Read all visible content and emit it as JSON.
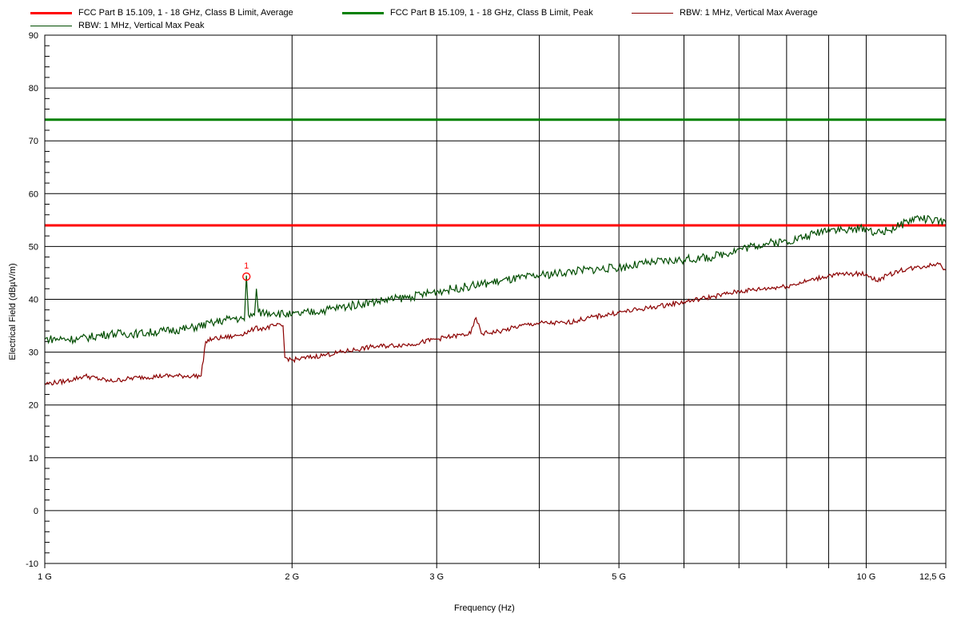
{
  "chart_data": {
    "type": "line",
    "title": "",
    "xlabel": "Frequency (Hz)",
    "ylabel": "Electrical Field (dBµV/m)",
    "xscale": "log",
    "xlim": [
      1,
      12.5
    ],
    "ylim": [
      -10,
      90
    ],
    "grid": true,
    "legend_position": "top",
    "x_ticks": [
      {
        "value": 1,
        "label": "1 G"
      },
      {
        "value": 2,
        "label": "2 G"
      },
      {
        "value": 3,
        "label": "3 G"
      },
      {
        "value": 5,
        "label": "5 G"
      },
      {
        "value": 10,
        "label": "10 G"
      },
      {
        "value": 12.5,
        "label": "12,5 G"
      }
    ],
    "x_minor_gridlines": [
      4,
      6,
      7,
      8,
      9
    ],
    "y_ticks": [
      {
        "value": -10,
        "label": "-10"
      },
      {
        "value": 0,
        "label": "0"
      },
      {
        "value": 10,
        "label": "10"
      },
      {
        "value": 20,
        "label": "20"
      },
      {
        "value": 30,
        "label": "30"
      },
      {
        "value": 40,
        "label": "40"
      },
      {
        "value": 50,
        "label": "50"
      },
      {
        "value": 60,
        "label": "60"
      },
      {
        "value": 70,
        "label": "70"
      },
      {
        "value": 80,
        "label": "80"
      },
      {
        "value": 90,
        "label": "90"
      }
    ],
    "series": [
      {
        "name": "FCC Part B 15.109, 1 - 18 GHz, Class B Limit, Average",
        "color": "#ff0000",
        "kind": "limit",
        "x": [
          1,
          12.5
        ],
        "y": [
          54,
          54
        ]
      },
      {
        "name": "FCC Part B 15.109, 1 - 18 GHz, Class B Limit, Peak",
        "color": "#008000",
        "kind": "limit",
        "x": [
          1,
          12.5
        ],
        "y": [
          74,
          74
        ]
      },
      {
        "name": "RBW: 1 MHz, Vertical Max Average",
        "color": "#8b0000",
        "kind": "trace",
        "x": [
          1.0,
          1.06,
          1.12,
          1.2,
          1.3,
          1.4,
          1.55,
          1.57,
          1.6,
          1.7,
          1.78,
          1.8,
          1.85,
          1.9,
          1.95,
          1.96,
          2.0,
          2.2,
          2.5,
          2.8,
          3.0,
          3.3,
          3.35,
          3.4,
          3.6,
          3.8,
          4.0,
          4.3,
          4.6,
          5.0,
          5.5,
          6.0,
          6.5,
          7.0,
          7.5,
          8.0,
          8.5,
          9.0,
          9.5,
          10.0,
          10.3,
          10.6,
          11.0,
          11.5,
          12.0,
          12.3,
          12.5
        ],
        "y": [
          24,
          24.5,
          25.5,
          24.5,
          25.2,
          25.5,
          25.5,
          32,
          32.5,
          33,
          34,
          34.5,
          34.5,
          35,
          35,
          29,
          28.5,
          29.5,
          31,
          31.5,
          32.5,
          33.5,
          36.5,
          33.5,
          34,
          35,
          35.5,
          35.5,
          36.5,
          37.5,
          38.5,
          39.5,
          40.5,
          41.5,
          42,
          42.5,
          43.5,
          44.5,
          44.8,
          44.8,
          43.5,
          44.5,
          45.5,
          46,
          46.5,
          46.8,
          45.5
        ]
      },
      {
        "name": "RBW: 1 MHz, Vertical Max Peak",
        "color": "#004d00",
        "kind": "trace",
        "x": [
          1.0,
          1.1,
          1.2,
          1.3,
          1.4,
          1.5,
          1.6,
          1.7,
          1.75,
          1.76,
          1.77,
          1.8,
          1.81,
          1.82,
          1.9,
          2.0,
          2.2,
          2.5,
          2.8,
          3.0,
          3.3,
          3.6,
          4.0,
          4.5,
          5.0,
          5.5,
          6.0,
          6.5,
          7.0,
          7.5,
          8.0,
          8.5,
          9.0,
          9.5,
          10.0,
          10.3,
          10.6,
          11.0,
          11.5,
          12.0,
          12.5
        ],
        "y": [
          32.5,
          32.5,
          33.5,
          33.5,
          34,
          34.5,
          35.5,
          36.5,
          36,
          44.5,
          37,
          37,
          42,
          37.5,
          37.5,
          37,
          38,
          39.5,
          40.5,
          41.5,
          42.5,
          43.5,
          44.5,
          45.5,
          46,
          47,
          47.5,
          48,
          49.5,
          50.5,
          51,
          52,
          53.5,
          53,
          53.5,
          52.5,
          53,
          54,
          55.5,
          55,
          54.5
        ]
      }
    ],
    "markers": [
      {
        "label": "1",
        "x": 1.76,
        "y": 44.3,
        "color": "#ff0000"
      }
    ]
  }
}
